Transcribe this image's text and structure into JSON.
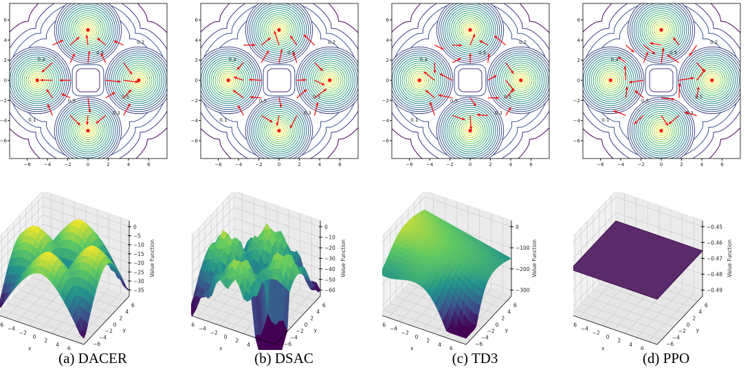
{
  "chart_data": [
    {
      "caption": "(a) DACER",
      "contour": {
        "type": "contour",
        "xlim": [
          -7.7,
          7.7
        ],
        "ylim": [
          -7.7,
          7.7
        ],
        "xticks": [
          "−6",
          "−4",
          "−2",
          "0",
          "2",
          "4",
          "6"
        ],
        "yticks": [
          "−6",
          "−4",
          "−2",
          "0",
          "2",
          "4",
          "6"
        ],
        "goals": [
          [
            0,
            5
          ],
          [
            -5,
            0
          ],
          [
            5,
            0
          ],
          [
            0,
            -5
          ]
        ],
        "level_labels": [
          "0.1",
          "0.2",
          "0.3",
          "0.5"
        ],
        "arrow_color": "#ff0000",
        "arrow_noise": 0.05
      },
      "surface": {
        "type": "surface",
        "shape": "peaks",
        "xlabel": "x",
        "ylabel": "y",
        "zlabel": "Value Function",
        "xticks": [
          "−6",
          "−4",
          "−2",
          "0",
          "2",
          "4",
          "6"
        ],
        "yticks": [
          "−6",
          "−4",
          "−2",
          "0",
          "2",
          "4",
          "6"
        ],
        "zticks": [
          "0",
          "−5",
          "−10",
          "−15",
          "−20",
          "−25",
          "−30",
          "−35"
        ],
        "zlim": [
          -37,
          2
        ]
      }
    },
    {
      "caption": "(b) DSAC",
      "contour": {
        "type": "contour",
        "xlim": [
          -7.7,
          7.7
        ],
        "ylim": [
          -7.7,
          7.7
        ],
        "xticks": [
          "−6",
          "−4",
          "−2",
          "0",
          "2",
          "4",
          "6"
        ],
        "yticks": [
          "−6",
          "−4",
          "−2",
          "0",
          "2",
          "4",
          "6"
        ],
        "goals": [
          [
            0,
            5
          ],
          [
            -5,
            0
          ],
          [
            5,
            0
          ],
          [
            0,
            -5
          ]
        ],
        "level_labels": [
          "0.1",
          "0.2",
          "0.3",
          "0.5"
        ],
        "arrow_color": "#ff0000",
        "arrow_noise": 0.15
      },
      "surface": {
        "type": "surface",
        "shape": "bumpy",
        "xlabel": "x",
        "ylabel": "y",
        "zlabel": "Value Function",
        "xticks": [
          "−6",
          "−4",
          "−2",
          "0",
          "2",
          "4",
          "6"
        ],
        "yticks": [
          "−6",
          "−4",
          "−2",
          "0",
          "2",
          "4",
          "6"
        ],
        "zticks": [
          "0",
          "−10",
          "−20",
          "−30",
          "−40",
          "−50",
          "−60"
        ],
        "zlim": [
          -63,
          3
        ]
      }
    },
    {
      "caption": "(c) TD3",
      "contour": {
        "type": "contour",
        "xlim": [
          -7.7,
          7.7
        ],
        "ylim": [
          -7.7,
          7.7
        ],
        "xticks": [
          "−6",
          "−4",
          "−2",
          "0",
          "2",
          "4",
          "6"
        ],
        "yticks": [
          "−6",
          "−4",
          "−2",
          "0",
          "2",
          "4",
          "6"
        ],
        "goals": [
          [
            0,
            5
          ],
          [
            -5,
            0
          ],
          [
            5,
            0
          ],
          [
            0,
            -5
          ]
        ],
        "level_labels": [
          "0.1",
          "0.2",
          "0.3",
          "0.5"
        ],
        "arrow_color": "#ff0000",
        "arrow_noise": 0.3
      },
      "surface": {
        "type": "surface",
        "shape": "ridge",
        "xlabel": "x",
        "ylabel": "y",
        "zlabel": "Value Function",
        "xticks": [
          "−6",
          "−4",
          "−2",
          "0",
          "2",
          "4",
          "6"
        ],
        "yticks": [
          "−6",
          "−4",
          "−2",
          "0",
          "2",
          "4",
          "6"
        ],
        "zticks": [
          "0",
          "−100",
          "−200",
          "−300"
        ],
        "zlim": [
          -340,
          40
        ]
      }
    },
    {
      "caption": "(d) PPO",
      "contour": {
        "type": "contour",
        "xlim": [
          -7.7,
          7.7
        ],
        "ylim": [
          -7.7,
          7.7
        ],
        "xticks": [
          "−6",
          "−4",
          "−2",
          "0",
          "2",
          "4",
          "6"
        ],
        "yticks": [
          "−6",
          "−4",
          "−2",
          "0",
          "2",
          "4",
          "6"
        ],
        "goals": [
          [
            0,
            5
          ],
          [
            -5,
            0
          ],
          [
            5,
            0
          ],
          [
            0,
            -5
          ]
        ],
        "level_labels": [
          "0.1",
          "0.2",
          "0.3",
          "0.5"
        ],
        "arrow_color": "#ff0000",
        "arrow_noise": 0.6
      },
      "surface": {
        "type": "surface",
        "shape": "flat",
        "xlabel": "x",
        "ylabel": "y",
        "zlabel": "Value Function",
        "xticks": [
          "−6",
          "−4",
          "−2",
          "0",
          "2",
          "4",
          "6"
        ],
        "yticks": [
          "−6",
          "−4",
          "−2",
          "0",
          "2",
          "4",
          "6"
        ],
        "zticks": [
          "−0.45",
          "−0.46",
          "−0.47",
          "−0.48",
          "−0.49"
        ],
        "zlim": [
          -0.493,
          -0.447
        ]
      }
    }
  ]
}
